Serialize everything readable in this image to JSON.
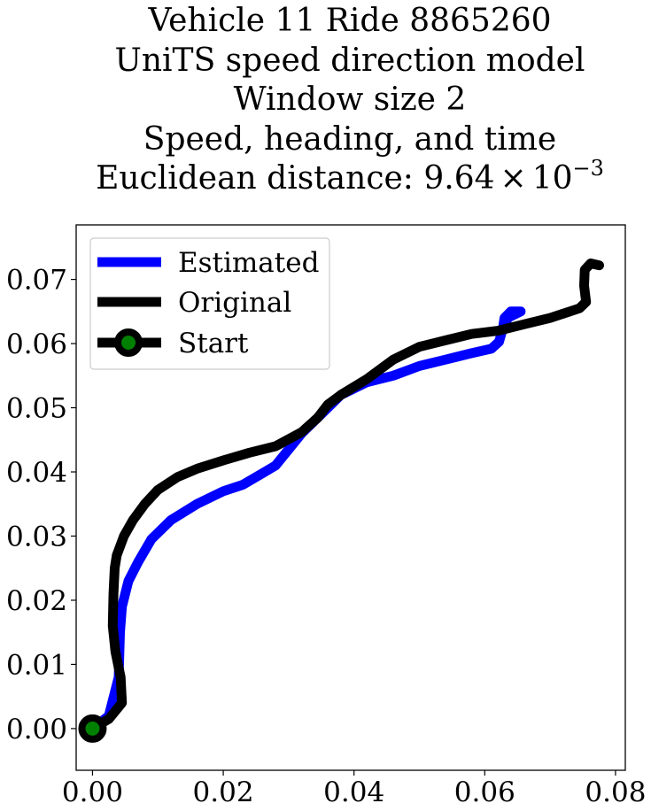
{
  "chart_data": {
    "type": "line",
    "title_lines": [
      "Vehicle 11 Ride 8865260",
      "UniTS speed direction model",
      "Window size 2",
      "Speed, heading, and time"
    ],
    "title_metric": {
      "prefix": "Euclidean distance: 9.64",
      "times": "×",
      "base": "10",
      "exponent": "−3"
    },
    "xlim": [
      -0.0025,
      0.0815
    ],
    "ylim": [
      -0.0065,
      0.0785
    ],
    "x_ticks": [
      0.0,
      0.02,
      0.04,
      0.06,
      0.08
    ],
    "x_tick_labels": [
      "0.00",
      "0.02",
      "0.04",
      "0.06",
      "0.08"
    ],
    "y_ticks": [
      0.0,
      0.01,
      0.02,
      0.03,
      0.04,
      0.05,
      0.06,
      0.07
    ],
    "y_tick_labels": [
      "0.00",
      "0.01",
      "0.02",
      "0.03",
      "0.04",
      "0.05",
      "0.06",
      "0.07"
    ],
    "grid": false,
    "legend_position": "top-left",
    "colors": {
      "estimated": "#0000ff",
      "original": "#000000",
      "start_marker_edge": "#000000",
      "start_marker_fill": "#008000"
    },
    "series": [
      {
        "name": "Estimated",
        "x": [
          0.0,
          0.0025,
          0.004,
          0.0042,
          0.0045,
          0.0055,
          0.007,
          0.009,
          0.012,
          0.016,
          0.02,
          0.023,
          0.026,
          0.028,
          0.03,
          0.032,
          0.035,
          0.038,
          0.042,
          0.046,
          0.05,
          0.054,
          0.058,
          0.061,
          0.0622,
          0.0628,
          0.063,
          0.064,
          0.0655,
          0.0635,
          0.0632
        ],
        "y": [
          0.0,
          0.002,
          0.008,
          0.015,
          0.019,
          0.023,
          0.026,
          0.0295,
          0.0325,
          0.035,
          0.037,
          0.038,
          0.0398,
          0.041,
          0.0435,
          0.046,
          0.049,
          0.052,
          0.054,
          0.055,
          0.0565,
          0.0575,
          0.0585,
          0.0592,
          0.0603,
          0.0625,
          0.064,
          0.065,
          0.065,
          0.064,
          0.063
        ]
      },
      {
        "name": "Original",
        "x": [
          0.0,
          0.0025,
          0.0045,
          0.0043,
          0.0035,
          0.0031,
          0.0032,
          0.0034,
          0.0037,
          0.0048,
          0.0062,
          0.008,
          0.01,
          0.013,
          0.016,
          0.02,
          0.024,
          0.028,
          0.032,
          0.0345,
          0.036,
          0.038,
          0.042,
          0.046,
          0.05,
          0.054,
          0.058,
          0.062,
          0.066,
          0.07,
          0.0745,
          0.0755,
          0.0752,
          0.0753,
          0.0762,
          0.0775
        ],
        "y": [
          0.0,
          0.0015,
          0.004,
          0.008,
          0.012,
          0.016,
          0.021,
          0.025,
          0.027,
          0.03,
          0.0325,
          0.035,
          0.0372,
          0.0392,
          0.0405,
          0.0418,
          0.043,
          0.044,
          0.0462,
          0.0485,
          0.0505,
          0.052,
          0.0545,
          0.0575,
          0.0595,
          0.0605,
          0.0615,
          0.062,
          0.063,
          0.064,
          0.0655,
          0.0665,
          0.069,
          0.0715,
          0.0725,
          0.0722
        ]
      },
      {
        "name": "Start",
        "x": [
          0.0
        ],
        "y": [
          0.0
        ]
      }
    ]
  }
}
